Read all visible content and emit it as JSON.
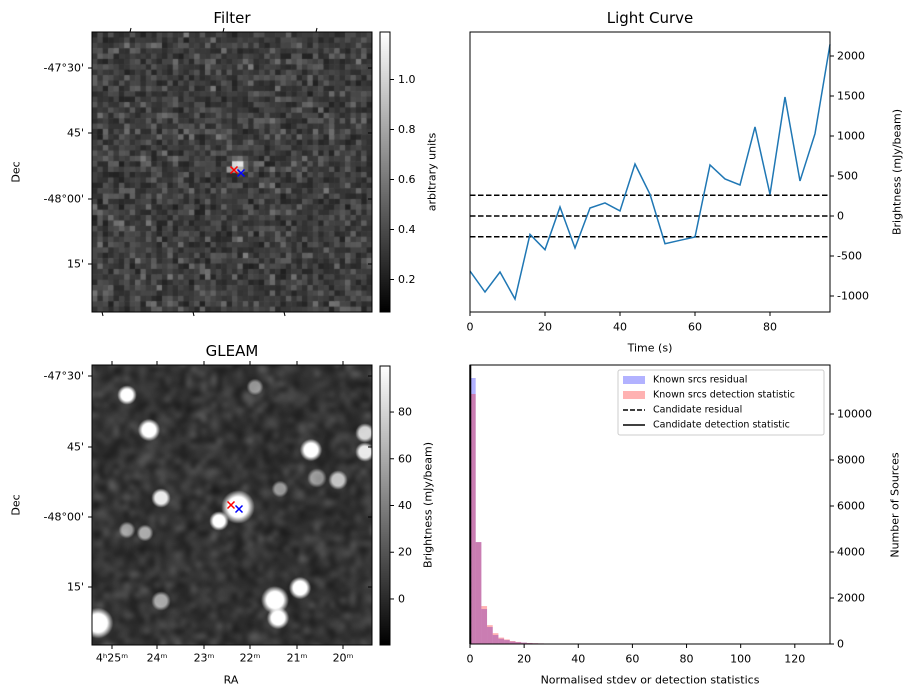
{
  "filter": {
    "title": "Filter",
    "ylabel": "Dec",
    "dec_ticks": [
      "-47°30'",
      "45'",
      "-48°00'",
      "15'"
    ],
    "colorbar": {
      "label": "arbitrary units",
      "ticks": [
        0.2,
        0.4,
        0.6,
        0.8,
        1.0
      ],
      "tick_labels": [
        "0.2",
        "0.4",
        "0.6",
        "0.8",
        "1.0"
      ],
      "range": [
        0.07,
        1.19
      ]
    },
    "markers": [
      {
        "color": "#ff0000",
        "symbol": "x"
      },
      {
        "color": "#0000ff",
        "symbol": "x"
      }
    ]
  },
  "gleam": {
    "title": "GLEAM",
    "ylabel": "Dec",
    "xlabel": "RA",
    "dec_ticks": [
      "-47°30'",
      "45'",
      "-48°00'",
      "15'"
    ],
    "ra_ticks": [
      "4ʰ25ᵐ",
      "24ᵐ",
      "23ᵐ",
      "22ᵐ",
      "21ᵐ",
      "20ᵐ"
    ],
    "colorbar": {
      "label": "Brightness (mJy/beam)",
      "ticks": [
        0,
        20,
        40,
        60,
        80
      ],
      "tick_labels": [
        "0",
        "20",
        "40",
        "60",
        "80"
      ],
      "range": [
        -19.7,
        99.7
      ]
    },
    "markers": [
      {
        "color": "#ff0000",
        "symbol": "x"
      },
      {
        "color": "#0000ff",
        "symbol": "x"
      }
    ]
  },
  "chart_data": [
    {
      "type": "line",
      "title": "Light Curve",
      "xlabel": "Time (s)",
      "ylabel": "Brightness (mJy/beam)",
      "xlim": [
        0,
        96
      ],
      "ylim": [
        -1200,
        2300
      ],
      "xticks": [
        0,
        20,
        40,
        60,
        80
      ],
      "yticks": [
        -1000,
        -500,
        0,
        500,
        1000,
        1500,
        2000
      ],
      "line_color": "#1f77b4",
      "x": [
        0,
        4,
        8,
        12,
        16,
        20,
        24,
        28,
        32,
        36,
        40,
        44,
        48,
        52,
        56,
        60,
        64,
        68,
        72,
        76,
        80,
        84,
        88,
        92,
        96
      ],
      "y": [
        -688,
        -950,
        -700,
        -1038,
        -229,
        -421,
        113,
        -400,
        100,
        163,
        63,
        650,
        271,
        -346,
        -304,
        -263,
        638,
        463,
        388,
        1113,
        271,
        1488,
        438,
        1029,
        2146
      ],
      "hlines": [
        {
          "y": 260,
          "style": "dashed"
        },
        {
          "y": 0,
          "style": "dashed"
        },
        {
          "y": -260,
          "style": "dashed"
        }
      ]
    },
    {
      "type": "bar",
      "xlabel": "Normalised stdev or detection statistics",
      "ylabel": "Number of Sources",
      "xlim": [
        0,
        133
      ],
      "ylim": [
        0,
        12130
      ],
      "xticks": [
        0,
        20,
        40,
        60,
        80,
        100,
        120
      ],
      "yticks": [
        0,
        2000,
        4000,
        6000,
        8000,
        10000
      ],
      "bin_width": 2.1,
      "series": [
        {
          "name": "Known srcs residual",
          "color": "#0000ff",
          "alpha": 0.3,
          "values": [
            11565,
            4430,
            1520,
            740,
            390,
            230,
            170,
            110,
            80,
            60,
            40,
            30,
            25,
            20,
            15,
            12,
            10,
            8,
            8,
            6,
            5,
            5,
            4,
            4,
            3,
            3,
            3,
            2,
            2,
            2,
            2,
            2,
            1,
            1,
            1,
            1,
            1,
            1,
            1,
            1,
            1,
            1,
            1,
            1,
            1,
            1,
            1,
            1,
            1,
            1,
            1,
            1,
            1,
            1,
            1,
            1,
            1,
            1,
            1,
            1
          ]
        },
        {
          "name": "Known srcs detection statistic",
          "color": "#ff0000",
          "alpha": 0.3,
          "values": [
            10870,
            4430,
            1650,
            820,
            470,
            280,
            200,
            130,
            90,
            60,
            45,
            35,
            28,
            22,
            18,
            14,
            12,
            10,
            8,
            7,
            6,
            5,
            5,
            4,
            4,
            3,
            3,
            3,
            2,
            2,
            2,
            2,
            2,
            1,
            1,
            1,
            1,
            1,
            1,
            1,
            1,
            1,
            1,
            1,
            1,
            1,
            1,
            1,
            1,
            1,
            1,
            1,
            1,
            1,
            1,
            1,
            1,
            1,
            1,
            1
          ]
        }
      ],
      "vlines": [
        {
          "name": "Candidate residual",
          "x": 0.1,
          "style": "dashed"
        },
        {
          "name": "Candidate detection statistic",
          "x": 0.1,
          "style": "solid"
        }
      ],
      "legend": "top-right"
    }
  ]
}
